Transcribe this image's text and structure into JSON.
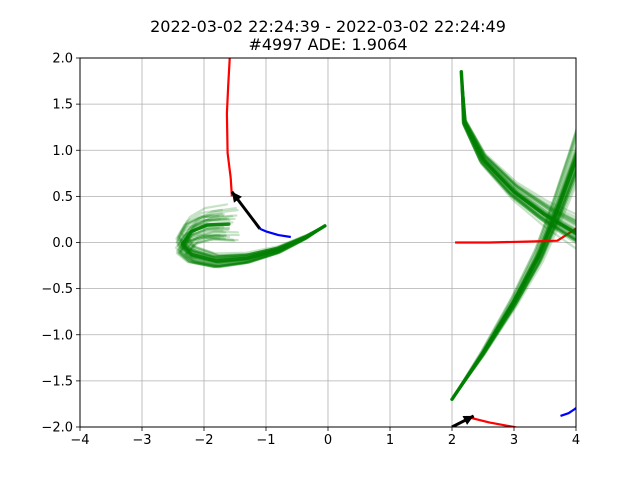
{
  "chart_data": {
    "type": "line",
    "title_line1": "2022-03-02 22:24:39 - 2022-03-02 22:24:49",
    "title_line2": "#4997 ADE: 1.9064",
    "xlim": [
      -4,
      4
    ],
    "ylim": [
      -2,
      2
    ],
    "xticks": [
      -4,
      -3,
      -2,
      -1,
      0,
      1,
      2,
      3,
      4
    ],
    "yticks": [
      -2.0,
      -1.5,
      -1.0,
      -0.5,
      0.0,
      0.5,
      1.0,
      1.5,
      2.0
    ],
    "grid": true,
    "colors": {
      "prediction": "#008000",
      "ground_truth": "#ff0000",
      "history": "#0000ff",
      "heading": "#000000",
      "grid": "#b0b0b0"
    },
    "agents": [
      {
        "history": [
          [
            -0.6,
            0.06
          ],
          [
            -0.8,
            0.08
          ],
          [
            -1.0,
            0.12
          ],
          [
            -1.1,
            0.15
          ]
        ],
        "ground_truth": [
          [
            -1.55,
            0.5
          ],
          [
            -1.57,
            0.7
          ],
          [
            -1.62,
            0.97
          ],
          [
            -1.63,
            1.4
          ],
          [
            -1.61,
            1.7
          ],
          [
            -1.58,
            2.05
          ]
        ],
        "heading": {
          "from": [
            -1.1,
            0.15
          ],
          "to": [
            -1.55,
            0.55
          ]
        },
        "prediction_mean": [
          [
            -0.05,
            0.18
          ],
          [
            -0.35,
            0.06
          ],
          [
            -0.8,
            -0.08
          ],
          [
            -1.3,
            -0.17
          ],
          [
            -1.8,
            -0.2
          ],
          [
            -2.2,
            -0.13
          ],
          [
            -2.35,
            -0.02
          ],
          [
            -2.2,
            0.12
          ],
          [
            -1.95,
            0.19
          ],
          [
            -1.6,
            0.2
          ]
        ]
      },
      {
        "history": [
          [
            3.75,
            -1.88
          ],
          [
            3.88,
            -1.85
          ],
          [
            3.97,
            -1.81
          ],
          [
            4.05,
            -1.77
          ]
        ],
        "ground_truth": [
          [
            2.3,
            -1.9
          ],
          [
            2.6,
            -1.95
          ],
          [
            3.0,
            -2.0
          ],
          [
            3.3,
            -2.05
          ],
          [
            3.6,
            -2.1
          ]
        ],
        "heading": {
          "from": [
            2.0,
            -2.0
          ],
          "to": [
            2.35,
            -1.88
          ]
        },
        "prediction_mean": []
      },
      {
        "history": [],
        "ground_truth": [
          [
            2.05,
            0.0
          ],
          [
            2.6,
            0.0
          ],
          [
            3.2,
            0.01
          ],
          [
            3.7,
            0.02
          ],
          [
            4.0,
            0.15
          ],
          [
            4.2,
            0.3
          ]
        ],
        "heading": null,
        "prediction_mean": [
          [
            2.0,
            -1.7
          ],
          [
            2.5,
            -1.2
          ],
          [
            3.0,
            -0.65
          ],
          [
            3.4,
            -0.15
          ],
          [
            3.7,
            0.35
          ],
          [
            4.0,
            0.9
          ],
          [
            4.3,
            1.5
          ]
        ]
      },
      {
        "history": [],
        "ground_truth": [],
        "heading": null,
        "prediction_mean": [
          [
            2.15,
            1.85
          ],
          [
            2.2,
            1.3
          ],
          [
            2.5,
            0.9
          ],
          [
            3.0,
            0.55
          ],
          [
            3.5,
            0.3
          ],
          [
            4.0,
            0.1
          ],
          [
            4.4,
            -0.05
          ]
        ]
      }
    ]
  }
}
